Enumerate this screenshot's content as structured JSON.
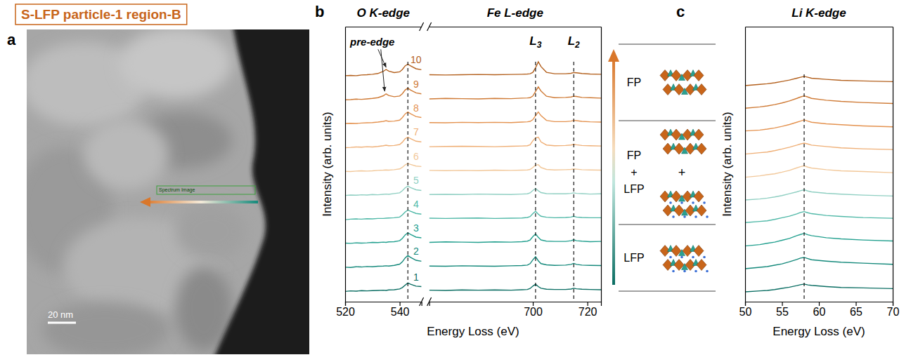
{
  "panel_a": {
    "panel_label": "a",
    "title": "S-LFP particle-1 region-B",
    "box_label": "Spectrum Image",
    "scale_bar": "20 nm"
  },
  "chart_data": [
    {
      "type": "line",
      "panel_label": "b",
      "xlabel": "Energy Loss (eV)",
      "ylabel": "Intensity (arb. units)",
      "ylim": [
        0,
        11.5
      ],
      "tick_labels": "x",
      "segments": [
        {
          "title": "O K-edge",
          "xlim": [
            520,
            548
          ],
          "xticks": [
            520,
            540
          ],
          "x": [
            520,
            522,
            524,
            526,
            528,
            530,
            532,
            534,
            535,
            536,
            538,
            540,
            541,
            542,
            543,
            544,
            546,
            548
          ]
        },
        {
          "title": "Fe L-edge",
          "xlim": [
            662,
            725
          ],
          "xticks": [
            700,
            720
          ],
          "x": [
            662,
            668,
            674,
            680,
            686,
            692,
            696,
            698,
            699,
            700,
            701,
            702,
            703,
            705,
            708,
            712,
            714,
            715,
            716,
            718,
            721,
            725
          ]
        }
      ],
      "series": [
        {
          "name": "1",
          "color": "#0b6e63",
          "values": [
            [
              0.43,
              0.45,
              0.44,
              0.46,
              0.45,
              0.46,
              0.47,
              0.48,
              0.47,
              0.49,
              0.5,
              0.53,
              0.59,
              0.69,
              0.78,
              0.73,
              0.65,
              0.63
            ],
            [
              0.48,
              0.47,
              0.49,
              0.48,
              0.49,
              0.48,
              0.5,
              0.51,
              0.55,
              0.65,
              0.73,
              0.63,
              0.56,
              0.52,
              0.51,
              0.51,
              0.53,
              0.56,
              0.54,
              0.52,
              0.51,
              0.5
            ]
          ]
        },
        {
          "name": "2",
          "color": "#14897b",
          "values": [
            [
              1.44,
              1.43,
              1.46,
              1.45,
              1.47,
              1.46,
              1.48,
              1.49,
              1.5,
              1.49,
              1.52,
              1.57,
              1.67,
              1.83,
              1.93,
              1.85,
              1.73,
              1.69
            ],
            [
              1.49,
              1.48,
              1.5,
              1.49,
              1.48,
              1.5,
              1.51,
              1.53,
              1.59,
              1.75,
              1.88,
              1.71,
              1.59,
              1.54,
              1.52,
              1.53,
              1.56,
              1.6,
              1.56,
              1.53,
              1.52,
              1.51
            ]
          ]
        },
        {
          "name": "3",
          "color": "#23a08f",
          "values": [
            [
              2.45,
              2.44,
              2.46,
              2.45,
              2.46,
              2.48,
              2.47,
              2.49,
              2.48,
              2.5,
              2.51,
              2.55,
              2.65,
              2.79,
              2.88,
              2.81,
              2.7,
              2.67
            ],
            [
              2.48,
              2.5,
              2.49,
              2.48,
              2.5,
              2.49,
              2.51,
              2.53,
              2.58,
              2.72,
              2.83,
              2.69,
              2.58,
              2.53,
              2.52,
              2.52,
              2.55,
              2.59,
              2.55,
              2.53,
              2.51,
              2.52
            ]
          ]
        },
        {
          "name": "4",
          "color": "#4fb8a7",
          "values": [
            [
              3.43,
              3.45,
              3.46,
              3.45,
              3.47,
              3.46,
              3.48,
              3.48,
              3.49,
              3.5,
              3.51,
              3.54,
              3.63,
              3.75,
              3.83,
              3.78,
              3.69,
              3.66
            ],
            [
              3.49,
              3.48,
              3.49,
              3.5,
              3.48,
              3.49,
              3.5,
              3.52,
              3.56,
              3.68,
              3.78,
              3.66,
              3.57,
              3.53,
              3.51,
              3.52,
              3.54,
              3.57,
              3.54,
              3.52,
              3.51,
              3.51
            ]
          ]
        },
        {
          "name": "5",
          "color": "#8fcfc2",
          "values": [
            [
              4.44,
              4.46,
              4.45,
              4.47,
              4.46,
              4.48,
              4.47,
              4.49,
              4.5,
              4.49,
              4.52,
              4.55,
              4.64,
              4.76,
              4.83,
              4.77,
              4.68,
              4.65
            ],
            [
              4.48,
              4.49,
              4.48,
              4.5,
              4.49,
              4.48,
              4.5,
              4.51,
              4.55,
              4.65,
              4.73,
              4.64,
              4.56,
              4.52,
              4.51,
              4.51,
              4.53,
              4.55,
              4.53,
              4.52,
              4.5,
              4.51
            ]
          ]
        },
        {
          "name": "6",
          "color": "#f2c89a",
          "values": [
            [
              5.45,
              5.44,
              5.46,
              5.47,
              5.46,
              5.47,
              5.49,
              5.5,
              5.51,
              5.5,
              5.52,
              5.55,
              5.62,
              5.72,
              5.78,
              5.74,
              5.67,
              5.65
            ],
            [
              5.49,
              5.48,
              5.49,
              5.48,
              5.5,
              5.49,
              5.5,
              5.51,
              5.53,
              5.61,
              5.71,
              5.73,
              5.61,
              5.53,
              5.51,
              5.52,
              5.53,
              5.55,
              5.54,
              5.52,
              5.51,
              5.5
            ]
          ]
        },
        {
          "name": "7",
          "color": "#efaf76",
          "values": [
            [
              6.44,
              6.45,
              6.47,
              6.46,
              6.48,
              6.47,
              6.49,
              6.52,
              6.54,
              6.52,
              6.53,
              6.57,
              6.67,
              6.81,
              6.88,
              6.82,
              6.71,
              6.68
            ],
            [
              6.48,
              6.49,
              6.5,
              6.49,
              6.48,
              6.5,
              6.51,
              6.52,
              6.56,
              6.73,
              6.85,
              6.88,
              6.68,
              6.55,
              6.52,
              6.53,
              6.55,
              6.58,
              6.56,
              6.53,
              6.52,
              6.51
            ]
          ]
        },
        {
          "name": "8",
          "color": "#e4924f",
          "values": [
            [
              7.45,
              7.46,
              7.45,
              7.47,
              7.48,
              7.49,
              7.51,
              7.54,
              7.57,
              7.54,
              7.55,
              7.59,
              7.7,
              7.85,
              7.93,
              7.86,
              7.74,
              7.7
            ],
            [
              7.49,
              7.48,
              7.5,
              7.49,
              7.5,
              7.49,
              7.51,
              7.52,
              7.54,
              7.61,
              7.78,
              7.93,
              7.78,
              7.58,
              7.53,
              7.53,
              7.55,
              7.58,
              7.57,
              7.54,
              7.52,
              7.51
            ]
          ]
        },
        {
          "name": "9",
          "color": "#cf7a35",
          "values": [
            [
              8.44,
              8.45,
              8.47,
              8.46,
              8.48,
              8.5,
              8.53,
              8.61,
              8.69,
              8.62,
              8.57,
              8.6,
              8.7,
              8.85,
              8.93,
              8.85,
              8.73,
              8.69
            ],
            [
              8.48,
              8.5,
              8.49,
              8.48,
              8.5,
              8.49,
              8.51,
              8.52,
              8.53,
              8.6,
              8.79,
              8.98,
              8.81,
              8.59,
              8.53,
              8.54,
              8.56,
              8.59,
              8.58,
              8.54,
              8.53,
              8.51
            ]
          ]
        },
        {
          "name": "10",
          "color": "#b3601d",
          "values": [
            [
              9.45,
              9.46,
              9.45,
              9.48,
              9.49,
              9.51,
              9.54,
              9.63,
              9.71,
              9.64,
              9.58,
              9.61,
              9.71,
              9.86,
              9.93,
              9.86,
              9.74,
              9.7
            ],
            [
              9.49,
              9.48,
              9.49,
              9.5,
              9.49,
              9.5,
              9.51,
              9.52,
              9.53,
              9.59,
              9.78,
              10.03,
              9.83,
              9.59,
              9.53,
              9.53,
              9.55,
              9.58,
              9.57,
              9.54,
              9.52,
              9.51
            ]
          ]
        }
      ],
      "reference_lines": [
        543,
        701,
        715
      ],
      "annotations": [
        {
          "text": "pre-edge",
          "x": 530,
          "y": 10.7,
          "arrows": [
            [
              535,
              9.8
            ],
            [
              534.5,
              8.8
            ]
          ]
        },
        {
          "text": "L3",
          "x": 701,
          "y": 10.75
        },
        {
          "text": "L2",
          "x": 715,
          "y": 10.75
        }
      ]
    },
    {
      "type": "line",
      "panel_label": "c",
      "title": "Li K-edge",
      "xlabel": "Energy Loss (eV)",
      "ylabel": "Intensity (arb. units)",
      "xlim": [
        50,
        70
      ],
      "xticks": [
        50,
        55,
        60,
        65,
        70
      ],
      "ylim": [
        0,
        12
      ],
      "tick_labels": "x",
      "x": [
        50,
        52,
        53,
        54,
        55,
        56,
        57,
        57.5,
        58,
        58.5,
        59,
        61,
        63,
        66,
        70
      ],
      "series": [
        {
          "color": "#0b6e63",
          "values": [
            0.43,
            0.47,
            0.49,
            0.53,
            0.58,
            0.63,
            0.7,
            0.74,
            0.77,
            0.73,
            0.71,
            0.66,
            0.62,
            0.6,
            0.57
          ]
        },
        {
          "color": "#14897b",
          "values": [
            1.44,
            1.5,
            1.53,
            1.59,
            1.65,
            1.74,
            1.84,
            1.9,
            1.93,
            1.88,
            1.83,
            1.77,
            1.72,
            1.68,
            1.63
          ]
        },
        {
          "color": "#23a08f",
          "values": [
            2.43,
            2.49,
            2.55,
            2.6,
            2.68,
            2.76,
            2.88,
            2.93,
            2.98,
            2.92,
            2.88,
            2.79,
            2.74,
            2.69,
            2.65
          ]
        },
        {
          "color": "#4fb8a7",
          "values": [
            3.45,
            3.5,
            3.53,
            3.59,
            3.66,
            3.73,
            3.83,
            3.89,
            3.93,
            3.88,
            3.84,
            3.76,
            3.72,
            3.67,
            3.64
          ]
        },
        {
          "color": "#8fcfc2",
          "values": [
            4.44,
            4.48,
            4.52,
            4.57,
            4.63,
            4.71,
            4.79,
            4.84,
            4.88,
            4.83,
            4.79,
            4.73,
            4.69,
            4.65,
            4.61
          ]
        },
        {
          "color": "#f2c89a",
          "values": [
            5.43,
            5.49,
            5.54,
            5.58,
            5.65,
            5.73,
            5.84,
            5.89,
            5.93,
            5.87,
            5.83,
            5.76,
            5.71,
            5.68,
            5.63
          ]
        },
        {
          "color": "#efaf76",
          "values": [
            6.44,
            6.5,
            6.53,
            6.59,
            6.66,
            6.74,
            6.83,
            6.88,
            6.92,
            6.88,
            6.83,
            6.77,
            6.71,
            6.67,
            6.64
          ]
        },
        {
          "color": "#e4924f",
          "values": [
            7.45,
            7.49,
            7.53,
            7.58,
            7.65,
            7.73,
            7.83,
            7.88,
            7.93,
            7.88,
            7.83,
            7.76,
            7.72,
            7.67,
            7.63
          ]
        },
        {
          "color": "#cf7a35",
          "values": [
            8.44,
            8.5,
            8.54,
            8.6,
            8.67,
            8.76,
            8.87,
            8.93,
            8.98,
            8.93,
            8.87,
            8.79,
            8.74,
            8.69,
            8.65
          ]
        },
        {
          "color": "#b3601d",
          "values": [
            9.43,
            9.48,
            9.51,
            9.55,
            9.61,
            9.67,
            9.75,
            9.79,
            9.83,
            9.79,
            9.75,
            9.7,
            9.66,
            9.63,
            9.6
          ]
        }
      ],
      "reference_lines": [
        58
      ]
    }
  ],
  "schematic": {
    "rows": [
      {
        "label": [
          "FP"
        ]
      },
      {
        "label": [
          "FP",
          "+",
          "LFP"
        ],
        "joiner": "+"
      },
      {
        "label": [
          "LFP"
        ]
      }
    ]
  }
}
